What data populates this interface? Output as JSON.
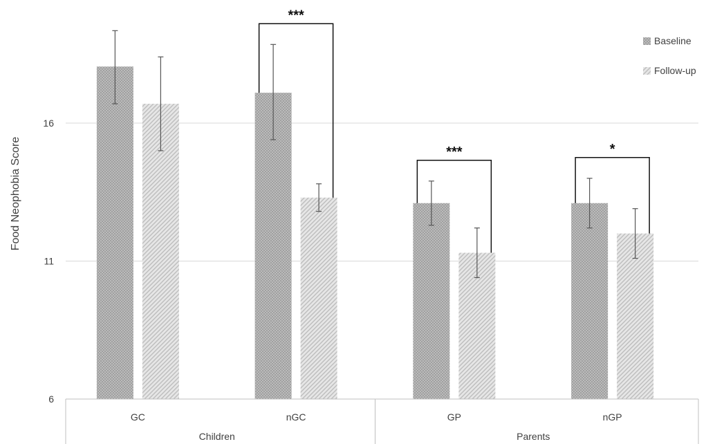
{
  "chart_data": {
    "type": "bar",
    "ylabel": "Food Neophobia Score",
    "y_ticks": [
      6,
      11,
      16
    ],
    "ylim": [
      6,
      19.5
    ],
    "grid": true,
    "legend_position": "top-right",
    "categories": [
      "GC",
      "nGC",
      "GP",
      "nGP"
    ],
    "groups": [
      {
        "label": "Children",
        "categories": [
          "GC",
          "nGC"
        ]
      },
      {
        "label": "Parents",
        "categories": [
          "GP",
          "nGP"
        ]
      }
    ],
    "series": [
      {
        "name": "Baseline",
        "pattern": "crosshatch",
        "color": "#9a9a9a",
        "values": [
          18.05,
          17.1,
          13.1,
          13.1
        ],
        "error_low": [
          16.7,
          15.4,
          12.3,
          12.2
        ],
        "error_high": [
          19.35,
          18.85,
          13.9,
          14.0
        ]
      },
      {
        "name": "Follow-up",
        "pattern": "diagonal",
        "color": "#b5b5b5",
        "values": [
          16.7,
          13.3,
          11.3,
          12.0
        ],
        "error_low": [
          15.0,
          12.8,
          10.4,
          11.1
        ],
        "error_high": [
          18.4,
          13.8,
          12.2,
          12.9
        ]
      }
    ],
    "significance": [
      {
        "category": "nGC",
        "label": "***"
      },
      {
        "category": "GP",
        "label": "***"
      },
      {
        "category": "nGP",
        "label": "*"
      }
    ]
  }
}
